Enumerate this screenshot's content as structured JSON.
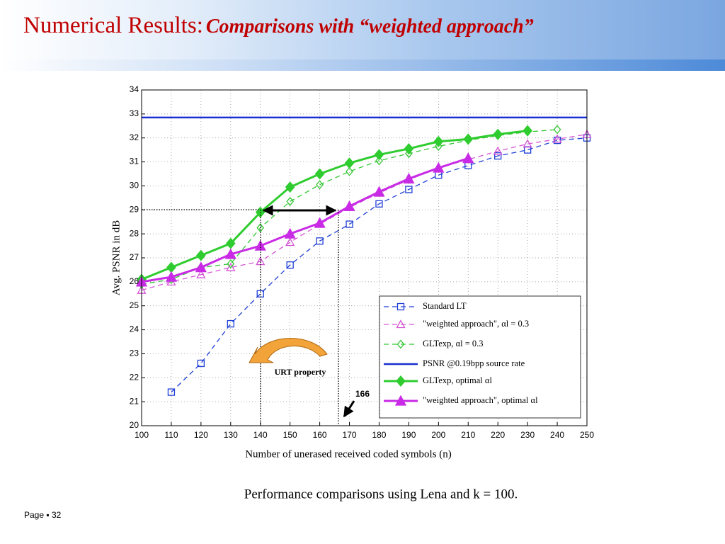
{
  "header": {
    "title": "Numerical Results:",
    "subtitle": "Comparisons with “weighted approach”"
  },
  "chart_data": {
    "type": "line",
    "x_label": "Number of unerased received coded symbols (n)",
    "y_label": "Avg. PSNR in dB",
    "x": [
      100,
      110,
      120,
      130,
      140,
      150,
      160,
      170,
      180,
      190,
      200,
      210,
      220,
      230,
      240,
      250
    ],
    "xlim": [
      100,
      250
    ],
    "xticks": [
      100,
      110,
      120,
      130,
      140,
      150,
      160,
      170,
      180,
      190,
      200,
      210,
      220,
      230,
      240,
      250
    ],
    "ylim": [
      20,
      34
    ],
    "yticks": [
      20,
      21,
      22,
      23,
      24,
      25,
      26,
      27,
      28,
      29,
      30,
      31,
      32,
      33,
      34
    ],
    "grid": true,
    "legend": "lower right",
    "series": [
      {
        "name": "Standard LT",
        "color": "#1f3fd6",
        "dash": true,
        "marker": "square",
        "filled": false,
        "values": [
          null,
          21.4,
          22.6,
          24.25,
          25.5,
          26.7,
          27.7,
          28.4,
          29.25,
          29.85,
          30.45,
          30.85,
          31.25,
          31.5,
          31.9,
          32.0
        ]
      },
      {
        "name": "\"weighted approach\", αl = 0.3",
        "color": "#d455d4",
        "dash": true,
        "marker": "triangle",
        "filled": false,
        "values": [
          25.65,
          26.0,
          26.3,
          26.6,
          26.85,
          27.65,
          28.4,
          29.1,
          29.7,
          30.25,
          30.75,
          31.1,
          31.45,
          31.75,
          31.95,
          32.15
        ]
      },
      {
        "name": "GLTexp, αl = 0.3",
        "color": "#33c633",
        "dash": true,
        "marker": "diamond",
        "filled": false,
        "values": [
          25.9,
          26.1,
          26.6,
          26.75,
          28.25,
          29.35,
          30.05,
          30.6,
          31.05,
          31.35,
          31.65,
          31.9,
          32.1,
          32.25,
          32.35,
          null
        ]
      },
      {
        "name": "PSNR @0.19bpp source rate",
        "color": "#1a2fd0",
        "dash": false,
        "filled": false,
        "values": [
          32.85,
          32.85,
          32.85,
          32.85,
          32.85,
          32.85,
          32.85,
          32.85,
          32.85,
          32.85,
          32.85,
          32.85,
          32.85,
          32.85,
          32.85,
          32.85
        ]
      },
      {
        "name": "GLTexp, optimal αl",
        "color": "#2fcc2f",
        "dash": false,
        "marker": "diamond",
        "filled": true,
        "values": [
          26.1,
          26.6,
          27.1,
          27.6,
          28.9,
          29.95,
          30.5,
          30.95,
          31.3,
          31.55,
          31.85,
          31.95,
          32.15,
          32.3,
          null,
          null
        ]
      },
      {
        "name": "\"weighted approach\", optimal αl",
        "color": "#c92ae6",
        "dash": false,
        "marker": "triangle",
        "filled": true,
        "values": [
          26.0,
          26.2,
          26.6,
          27.15,
          27.5,
          28.0,
          28.45,
          29.15,
          29.75,
          30.3,
          30.75,
          31.15,
          null,
          null,
          null,
          null
        ]
      }
    ],
    "annotations": [
      "URT property",
      "166"
    ]
  },
  "caption": "Performance comparisons using Lena and k = 100.",
  "footer": "Page ▪ 32"
}
